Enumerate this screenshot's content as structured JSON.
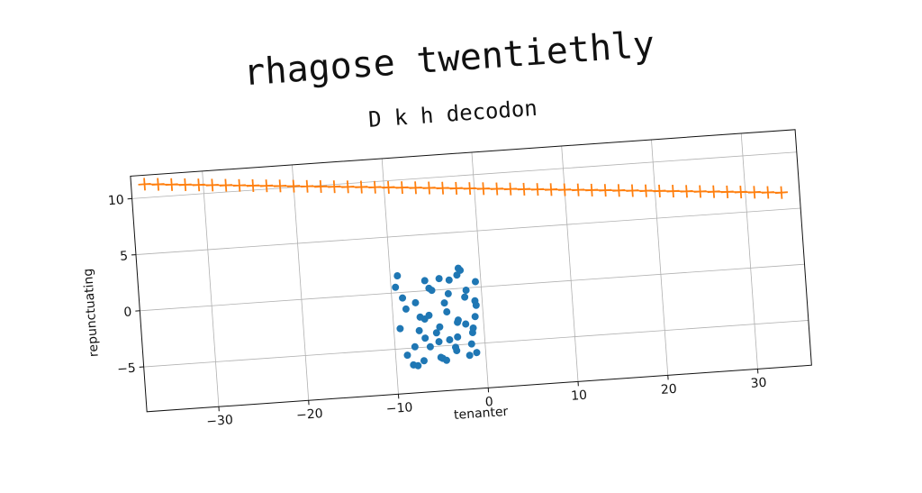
{
  "suptitle": "rhagose twentiethly",
  "chart_data": {
    "type": "scatter",
    "title": "D k h decodon",
    "xlabel": "tenanter",
    "ylabel": "repunctuating",
    "xlim": [
      -38,
      36
    ],
    "ylim": [
      -9,
      12
    ],
    "x_ticks": [
      -30,
      -20,
      -10,
      0,
      10,
      20,
      30
    ],
    "y_ticks": [
      -5,
      0,
      5,
      10
    ],
    "x_tick_labels": [
      "−30",
      "−20",
      "−10",
      "0",
      "10",
      "20",
      "30"
    ],
    "y_tick_labels": [
      "−5",
      "0",
      "5",
      "10"
    ],
    "grid": true,
    "series": [
      {
        "kind": "line-plus-markers",
        "color": "#ff7f0e",
        "x": [
          -36.5,
          -35,
          -33.5,
          -32,
          -30.5,
          -29,
          -27.5,
          -26,
          -24.5,
          -23,
          -21.5,
          -20,
          -18.5,
          -17,
          -15.5,
          -14,
          -12.5,
          -11,
          -9.5,
          -8,
          -6.5,
          -5,
          -3.5,
          -2,
          -0.5,
          1,
          2.5,
          4,
          5.5,
          7,
          8.5,
          10,
          11.5,
          13,
          14.5,
          16,
          17.5,
          19,
          20.5,
          22,
          23.5,
          25,
          26.5,
          28,
          29.5,
          31,
          32.5,
          34
        ],
        "y": [
          11.2,
          11.1,
          11.0,
          10.9,
          10.8,
          10.7,
          10.6,
          10.5,
          10.4,
          10.3,
          10.2,
          10.1,
          10.0,
          9.9,
          9.8,
          9.7,
          9.6,
          9.5,
          9.4,
          9.3,
          9.2,
          9.1,
          9.0,
          8.9,
          8.8,
          8.7,
          8.6,
          8.5,
          8.4,
          8.3,
          8.2,
          8.1,
          8.0,
          7.9,
          7.8,
          7.7,
          7.6,
          7.5,
          7.4,
          7.3,
          7.2,
          7.1,
          7.0,
          6.9,
          6.8,
          6.7,
          6.6,
          6.5
        ]
      },
      {
        "kind": "points",
        "color": "#1f77b4",
        "x": [
          -9.5,
          -9.2,
          -8.8,
          -8.5,
          -7.8,
          -7.2,
          -6.9,
          -6.5,
          -6.1,
          -5.8,
          -5.3,
          -5.0,
          -4.6,
          -4.2,
          -3.9,
          -3.5,
          -3.2,
          -2.8,
          -2.4,
          -2.0,
          -1.7,
          -1.3,
          -1.0,
          -0.6,
          -9.3,
          -8.1,
          -7.4,
          -6.6,
          -5.5,
          -4.8,
          -4.0,
          -3.3,
          -2.6,
          -1.9,
          -1.2,
          -0.7,
          -8.7,
          -7.0,
          -6.2,
          -5.1,
          -4.4,
          -3.7,
          -2.9,
          -2.2,
          -1.5,
          -0.9,
          -7.6,
          -6.0,
          -4.9,
          -3.0,
          -1.8,
          -0.8
        ],
        "y": [
          0.5,
          1.5,
          -0.5,
          -1.5,
          -4.9,
          -3.5,
          -6.2,
          -2.5,
          -5.0,
          0.2,
          -3.8,
          -6.0,
          1.0,
          -1.2,
          -4.5,
          0.8,
          -5.5,
          -2.8,
          1.8,
          -3.2,
          -0.2,
          -4.0,
          -5.8,
          0.5,
          -3.2,
          -6.5,
          -1.0,
          -4.2,
          0.0,
          -6.1,
          -2.0,
          -5.2,
          1.2,
          -0.8,
          -3.6,
          -1.6,
          -5.6,
          -2.3,
          0.9,
          -4.6,
          -6.3,
          -0.4,
          -3.0,
          1.6,
          -5.0,
          -2.6,
          -6.6,
          -2.2,
          -3.3,
          -4.3,
          -6.0,
          -1.2
        ]
      }
    ]
  }
}
